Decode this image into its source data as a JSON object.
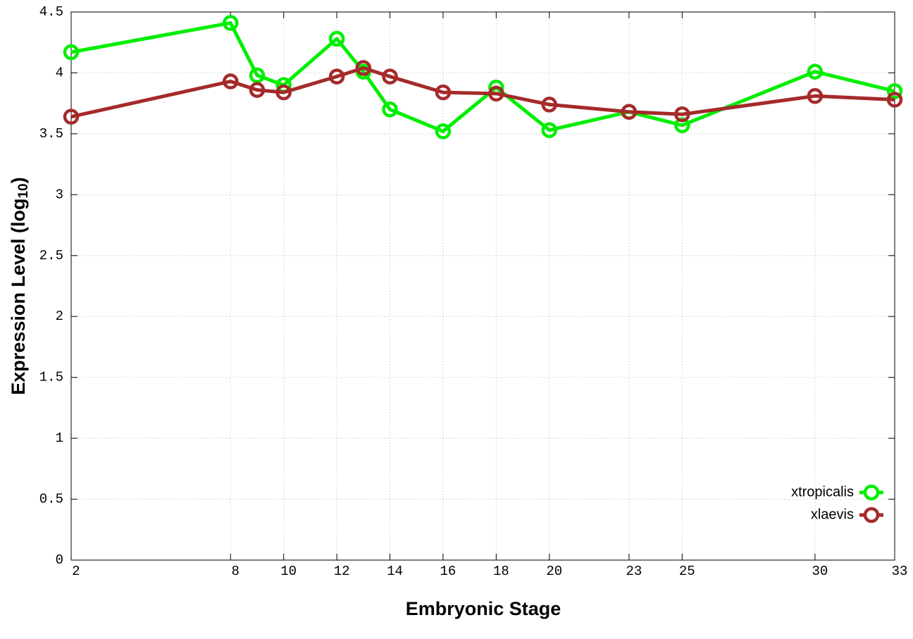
{
  "chart_data": {
    "type": "line",
    "x_label": "Embryonic Stage",
    "y_label": "Expression Level (log",
    "y_label_subscript": "10",
    "y_label_end": ")",
    "x": [
      2,
      8,
      9,
      10,
      12,
      13,
      14,
      16,
      18,
      20,
      23,
      25,
      30,
      33
    ],
    "series": [
      {
        "name": "xtropicalis",
        "color": "#00ee00",
        "values": [
          4.17,
          4.41,
          3.98,
          3.9,
          4.28,
          4.01,
          3.7,
          3.52,
          3.88,
          3.53,
          3.68,
          3.57,
          4.01,
          3.85
        ]
      },
      {
        "name": "xlaevis",
        "color": "#a52a2a",
        "values": [
          3.64,
          3.93,
          3.86,
          3.84,
          3.97,
          4.04,
          3.97,
          3.84,
          3.83,
          3.74,
          3.68,
          3.66,
          3.81,
          3.78
        ]
      }
    ],
    "xlim": [
      2,
      33
    ],
    "xticks": [
      2,
      8,
      10,
      12,
      14,
      16,
      18,
      20,
      23,
      25,
      30,
      33
    ],
    "ylim": [
      0,
      4.5
    ],
    "yticks": [
      0,
      0.5,
      1,
      1.5,
      2,
      2.5,
      3,
      3.5,
      4,
      4.5
    ],
    "grid": true,
    "legend": "lower right"
  }
}
